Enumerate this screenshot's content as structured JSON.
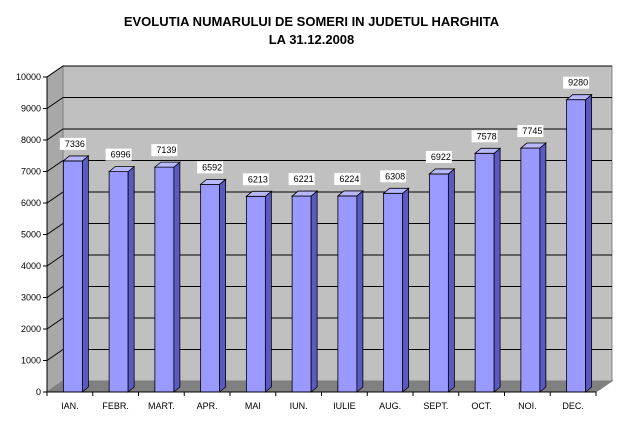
{
  "chart_data": {
    "type": "bar",
    "title_lines": [
      "EVOLUTIA NUMARULUI DE SOMERI IN JUDETUL HARGHITA",
      "LA 31.12.2008"
    ],
    "categories": [
      "IAN.",
      "FEBR.",
      "MART.",
      "APR.",
      "MAI",
      "IUN.",
      "IULIE",
      "AUG.",
      "SEPT.",
      "OCT.",
      "NOI.",
      "DEC."
    ],
    "values": [
      7336,
      6996,
      7139,
      6592,
      6213,
      6221,
      6224,
      6308,
      6922,
      7578,
      7745,
      9280
    ],
    "ylim": [
      0,
      10000
    ],
    "yticks": [
      0,
      1000,
      2000,
      3000,
      4000,
      5000,
      6000,
      7000,
      8000,
      9000,
      10000
    ],
    "grid": true,
    "legend": "none",
    "colors": {
      "bar_front": "#9999ff",
      "bar_side": "#5a5ac0",
      "bar_top": "#b8b8ff",
      "back_wall": "#c0c0c0",
      "side_wall": "#a8a8a8",
      "floor": "#808080"
    }
  }
}
